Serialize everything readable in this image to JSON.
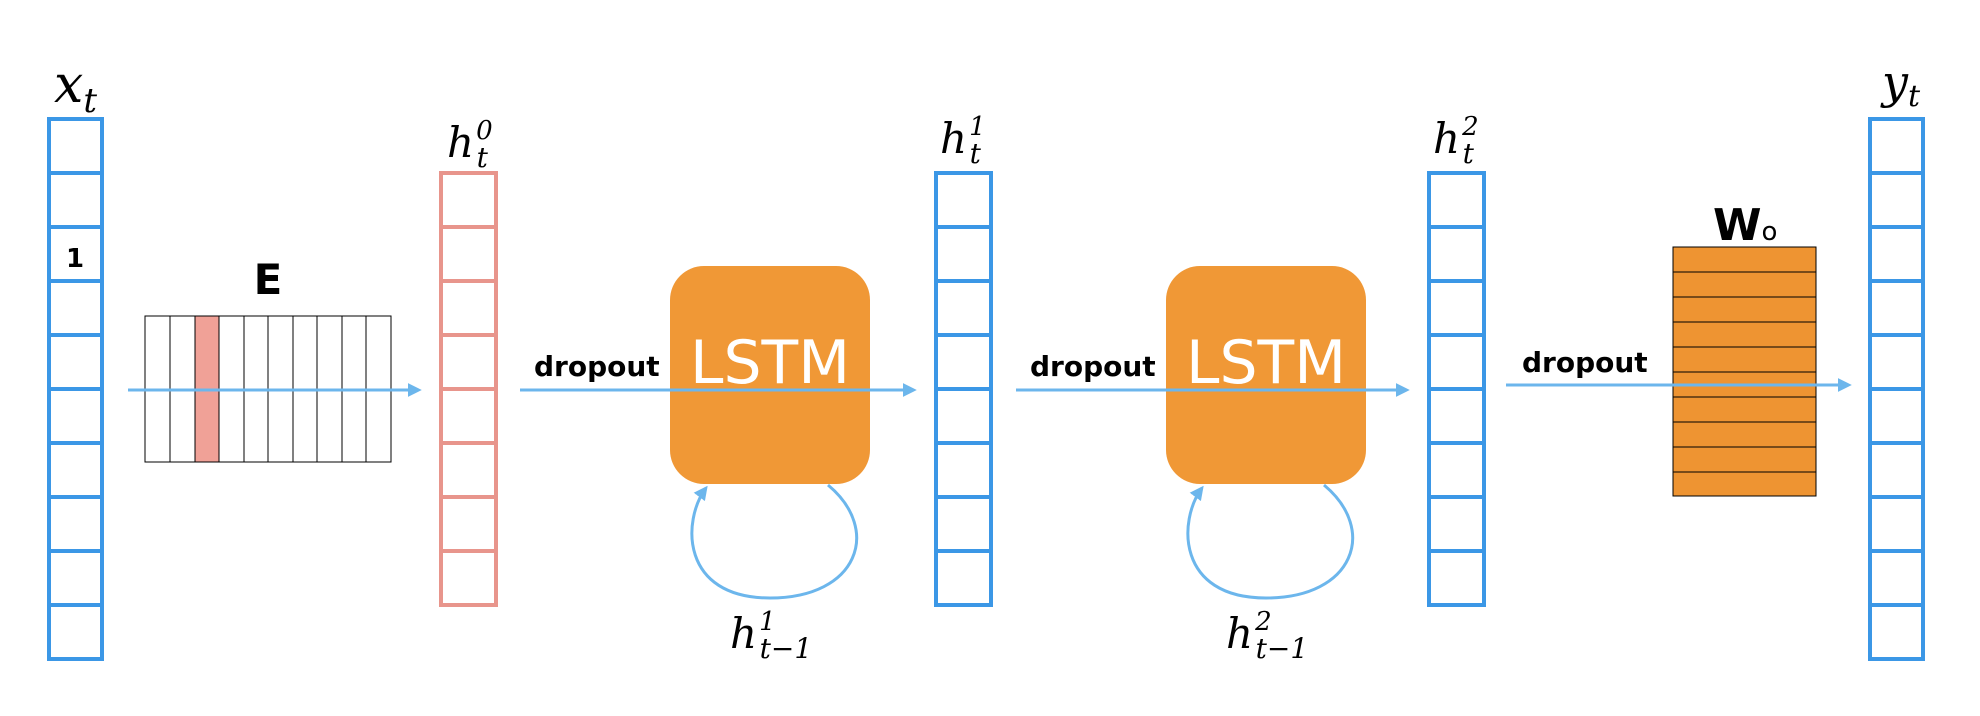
{
  "colors": {
    "blue": "#3b97e6",
    "pink": "#e8958c",
    "embed_fill": "#f0a197",
    "lstm_fill": "#f09836",
    "arrow": "#6cb6ec",
    "wo_fill": "#ee9432"
  },
  "labels": {
    "x": {
      "base": "x",
      "sub": "t"
    },
    "h0": {
      "base": "h",
      "sub": "t",
      "sup": "0"
    },
    "h1": {
      "base": "h",
      "sub": "t",
      "sup": "1"
    },
    "h2": {
      "base": "h",
      "sub": "t",
      "sup": "2"
    },
    "y": {
      "base": "y",
      "sub": "t"
    },
    "h1_prev": {
      "base": "h",
      "sub": "t−1",
      "sup": "1"
    },
    "h2_prev": {
      "base": "h",
      "sub": "t−1",
      "sup": "2"
    },
    "embedding": "E",
    "output_weight": {
      "base": "W",
      "sub": "o"
    },
    "one_hot_value": "1",
    "dropout_1": "dropout",
    "dropout_2": "dropout",
    "dropout_3": "dropout",
    "lstm_1": "LSTM",
    "lstm_2": "LSTM"
  }
}
